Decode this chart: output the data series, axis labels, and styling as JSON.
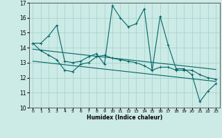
{
  "xlabel": "Humidex (Indice chaleur)",
  "bg_color": "#cceae6",
  "grid_color": "#aad4ce",
  "line_color": "#006666",
  "xlim": [
    -0.5,
    23.5
  ],
  "ylim": [
    10,
    17
  ],
  "yticks": [
    10,
    11,
    12,
    13,
    14,
    15,
    16,
    17
  ],
  "xticks": [
    0,
    1,
    2,
    3,
    4,
    5,
    6,
    7,
    8,
    9,
    10,
    11,
    12,
    13,
    14,
    15,
    16,
    17,
    18,
    19,
    20,
    21,
    22,
    23
  ],
  "series1_x": [
    0,
    1,
    2,
    3,
    4,
    5,
    6,
    7,
    8,
    9,
    10,
    11,
    12,
    13,
    14,
    15,
    16,
    17,
    18,
    19,
    20,
    21,
    22,
    23
  ],
  "series1_y": [
    14.3,
    14.3,
    14.8,
    15.5,
    13.1,
    13.0,
    13.1,
    13.4,
    13.6,
    12.9,
    16.8,
    16.0,
    15.4,
    15.6,
    16.6,
    12.5,
    16.1,
    14.2,
    12.6,
    12.6,
    12.2,
    10.4,
    11.1,
    11.6
  ],
  "series2_x": [
    0,
    1,
    2,
    3,
    4,
    5,
    6,
    7,
    8,
    9,
    10,
    11,
    12,
    13,
    14,
    15,
    16,
    17,
    18,
    19,
    20,
    21,
    22,
    23
  ],
  "series2_y": [
    14.3,
    13.8,
    13.5,
    13.2,
    12.5,
    12.4,
    12.9,
    13.0,
    13.4,
    13.5,
    13.3,
    13.2,
    13.1,
    13.0,
    12.8,
    12.5,
    12.7,
    12.7,
    12.5,
    12.5,
    12.5,
    12.2,
    12.0,
    11.9
  ],
  "trendline1_x": [
    0,
    23
  ],
  "trendline1_y": [
    13.9,
    12.55
  ],
  "trendline2_x": [
    0,
    23
  ],
  "trendline2_y": [
    13.1,
    11.75
  ]
}
